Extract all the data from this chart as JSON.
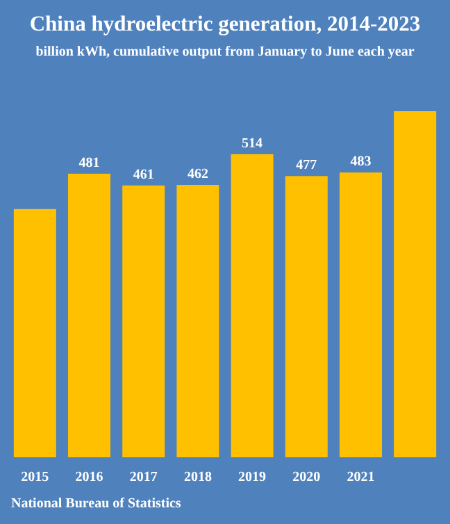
{
  "chart_data": {
    "type": "bar",
    "title": "China hydroelectric generation, 2014-2023",
    "subtitle": "billion kWh, cumulative output from January to June each year",
    "categories": [
      "2015",
      "2016",
      "2017",
      "2018",
      "2019",
      "2020",
      "2021",
      null
    ],
    "values": [
      421,
      481,
      461,
      462,
      514,
      477,
      483,
      587
    ],
    "value_labels": [
      null,
      "481",
      "461",
      "462",
      "514",
      "477",
      "483",
      null
    ],
    "color": "#ffc000",
    "annotations": [
      "National Bureau of Statistics"
    ]
  }
}
